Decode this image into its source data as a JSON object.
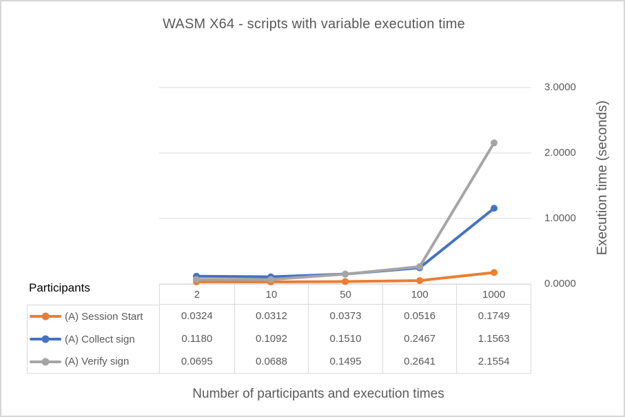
{
  "chart_data": {
    "type": "line",
    "title": "WASM X64 - scripts with variable execution time",
    "categories": [
      "2",
      "10",
      "50",
      "100",
      "1000"
    ],
    "series": [
      {
        "name": "(A) Session Start",
        "color": "#ED7D31",
        "values": [
          0.0324,
          0.0312,
          0.0373,
          0.0516,
          0.1749
        ]
      },
      {
        "name": "(A) Collect sign",
        "color": "#4472C4",
        "values": [
          0.118,
          0.1092,
          0.151,
          0.2467,
          1.1563
        ]
      },
      {
        "name": "(A) Verify sign",
        "color": "#A5A5A5",
        "values": [
          0.0695,
          0.0688,
          0.1495,
          0.2641,
          2.1554
        ]
      }
    ],
    "xlabel": "Number of participants and execution times",
    "ylabel": "Execution time (seconds)",
    "ylim": [
      0,
      3
    ],
    "yticks": [
      0,
      1,
      2,
      3
    ],
    "ytick_labels": [
      "0.0000",
      "1.0000",
      "2.0000",
      "3.0000"
    ],
    "value_decimals": 4,
    "grid": true,
    "y_axis_side": "right",
    "legend_position": "data-table-left",
    "table_corner_label": "Participants"
  },
  "colors": {
    "grid": "#D9D9D9",
    "axis_text": "#595959",
    "title_text": "#595959",
    "corner_label_text": "#000000",
    "background": "#FFFFFF",
    "border": "#D6D6D6"
  }
}
